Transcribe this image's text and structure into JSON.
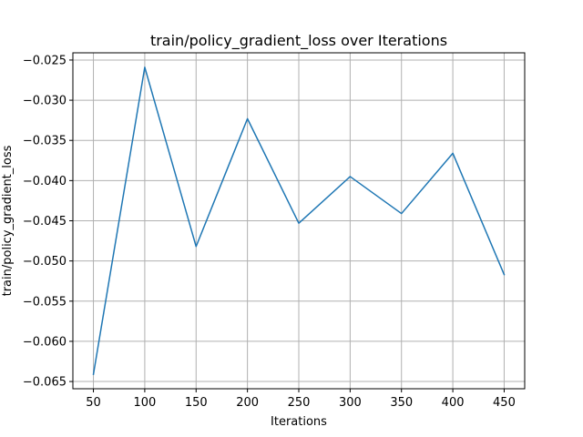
{
  "chart_data": {
    "type": "line",
    "title": "train/policy_gradient_loss over Iterations",
    "xlabel": "Iterations",
    "ylabel": "train/policy_gradient_loss",
    "xlim": [
      30,
      470
    ],
    "ylim": [
      -0.0659,
      -0.0241
    ],
    "x_ticks": [
      50,
      100,
      150,
      200,
      250,
      300,
      350,
      400,
      450
    ],
    "x_tick_labels": [
      "50",
      "100",
      "150",
      "200",
      "250",
      "300",
      "350",
      "400",
      "450"
    ],
    "y_ticks": [
      -0.065,
      -0.06,
      -0.055,
      -0.05,
      -0.045,
      -0.04,
      -0.035,
      -0.03,
      -0.025
    ],
    "y_tick_labels": [
      "−0.065",
      "−0.060",
      "−0.055",
      "−0.050",
      "−0.045",
      "−0.040",
      "−0.035",
      "−0.030",
      "−0.025"
    ],
    "grid": true,
    "series": [
      {
        "color": "#1f77b4",
        "x": [
          50,
          100,
          150,
          200,
          250,
          300,
          350,
          400,
          450
        ],
        "y": [
          -0.0641,
          -0.0259,
          -0.0482,
          -0.0323,
          -0.0453,
          -0.0395,
          -0.0441,
          -0.0366,
          -0.0517
        ]
      }
    ]
  }
}
